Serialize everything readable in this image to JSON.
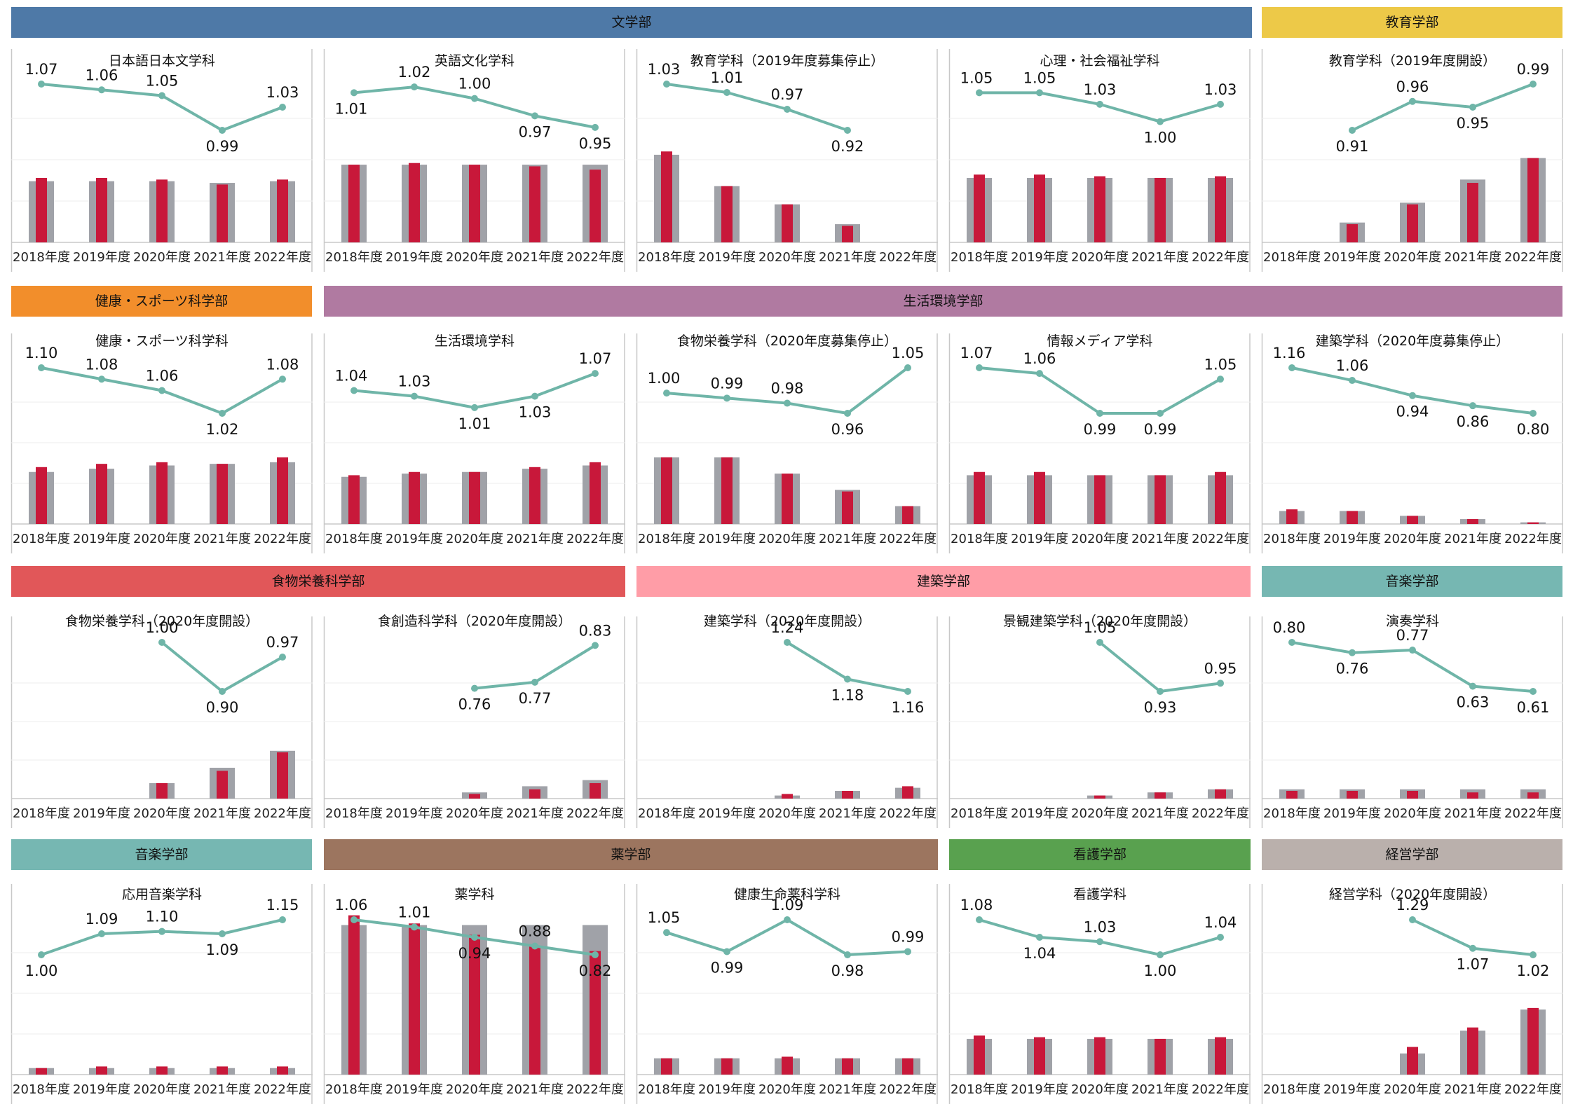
{
  "colors": {
    "gray_bar": "#a0a2a8",
    "red_bar": "#c8183a",
    "line": "#6fb5a8",
    "axis": "#c8c8c8",
    "grid": "#eeeeee"
  },
  "years": [
    "2018年度",
    "2019年度",
    "2020年度",
    "2021年度",
    "2022年度"
  ],
  "bands": [
    {
      "label": "文学部",
      "color": "#4e79a7"
    },
    {
      "label": "教育学部",
      "color": "#edc948"
    },
    {
      "label": "健康・スポーツ科学部",
      "color": "#f28e2b"
    },
    {
      "label": "生活環境学部",
      "color": "#b07aa1"
    },
    {
      "label": "食物栄養科学部",
      "color": "#e15759"
    },
    {
      "label": "建築学部",
      "color": "#ff9da7"
    },
    {
      "label": "音楽学部",
      "color": "#76b7b2"
    },
    {
      "label": "音楽学部",
      "color": "#76b7b2"
    },
    {
      "label": "薬学部",
      "color": "#9c755f"
    },
    {
      "label": "看護学部",
      "color": "#59a14f"
    },
    {
      "label": "経営学部",
      "color": "#bab0ac"
    }
  ],
  "chart_data": [
    {
      "type": "bar+line",
      "title": "日本語日本文学科",
      "categories": [
        "2018年度",
        "2019年度",
        "2020年度",
        "2021年度",
        "2022年度"
      ],
      "series": [
        {
          "type": "bar",
          "values": [
            0.37,
            0.37,
            0.37,
            0.36,
            0.37
          ]
        },
        {
          "type": "bar",
          "values": [
            0.39,
            0.39,
            0.38,
            0.35,
            0.38
          ]
        },
        {
          "type": "line",
          "values": [
            1.07,
            1.06,
            1.05,
            0.99,
            1.03
          ]
        }
      ]
    },
    {
      "type": "bar+line",
      "title": "英語文化学科",
      "categories": [
        "2018年度",
        "2019年度",
        "2020年度",
        "2021年度",
        "2022年度"
      ],
      "series": [
        {
          "type": "bar",
          "values": [
            0.47,
            0.47,
            0.47,
            0.47,
            0.47
          ]
        },
        {
          "type": "bar",
          "values": [
            0.47,
            0.48,
            0.47,
            0.46,
            0.44
          ]
        },
        {
          "type": "line",
          "values": [
            1.01,
            1.02,
            1.0,
            0.97,
            0.95
          ]
        }
      ]
    },
    {
      "type": "bar+line",
      "title": "教育学科（2019年度募集停止）",
      "categories": [
        "2018年度",
        "2019年度",
        "2020年度",
        "2021年度",
        "2022年度"
      ],
      "series": [
        {
          "type": "bar",
          "values": [
            0.53,
            0.34,
            0.23,
            0.11,
            null
          ]
        },
        {
          "type": "bar",
          "values": [
            0.55,
            0.34,
            0.23,
            0.1,
            null
          ]
        },
        {
          "type": "line",
          "values": [
            1.03,
            1.01,
            0.97,
            0.92,
            null
          ]
        }
      ]
    },
    {
      "type": "bar+line",
      "title": "心理・社会福祉学科",
      "categories": [
        "2018年度",
        "2019年度",
        "2020年度",
        "2021年度",
        "2022年度"
      ],
      "series": [
        {
          "type": "bar",
          "values": [
            0.39,
            0.39,
            0.39,
            0.39,
            0.39
          ]
        },
        {
          "type": "bar",
          "values": [
            0.41,
            0.41,
            0.4,
            0.39,
            0.4
          ]
        },
        {
          "type": "line",
          "values": [
            1.05,
            1.05,
            1.03,
            1.0,
            1.03
          ]
        }
      ]
    },
    {
      "type": "bar+line",
      "title": "教育学科（2019年度開設）",
      "categories": [
        "2018年度",
        "2019年度",
        "2020年度",
        "2021年度",
        "2022年度"
      ],
      "series": [
        {
          "type": "bar",
          "values": [
            null,
            0.12,
            0.24,
            0.38,
            0.51
          ]
        },
        {
          "type": "bar",
          "values": [
            null,
            0.11,
            0.23,
            0.36,
            0.51
          ]
        },
        {
          "type": "line",
          "values": [
            null,
            0.91,
            0.96,
            0.95,
            0.99
          ]
        }
      ]
    },
    {
      "type": "bar+line",
      "title": "健康・スポーツ科学科",
      "categories": [
        "2018年度",
        "2019年度",
        "2020年度",
        "2021年度",
        "2022年度"
      ],
      "series": [
        {
          "type": "bar",
          "values": [
            0.32,
            0.34,
            0.36,
            0.37,
            0.38
          ]
        },
        {
          "type": "bar",
          "values": [
            0.35,
            0.37,
            0.38,
            0.37,
            0.41
          ]
        },
        {
          "type": "line",
          "values": [
            1.1,
            1.08,
            1.06,
            1.02,
            1.08
          ]
        }
      ]
    },
    {
      "type": "bar+line",
      "title": "生活環境学科",
      "categories": [
        "2018年度",
        "2019年度",
        "2020年度",
        "2021年度",
        "2022年度"
      ],
      "series": [
        {
          "type": "bar",
          "values": [
            0.29,
            0.31,
            0.32,
            0.34,
            0.36
          ]
        },
        {
          "type": "bar",
          "values": [
            0.3,
            0.32,
            0.32,
            0.35,
            0.38
          ]
        },
        {
          "type": "line",
          "values": [
            1.04,
            1.03,
            1.01,
            1.03,
            1.07
          ]
        }
      ]
    },
    {
      "type": "bar+line",
      "title": "食物栄養学科（2020年度募集停止）",
      "categories": [
        "2018年度",
        "2019年度",
        "2020年度",
        "2021年度",
        "2022年度"
      ],
      "series": [
        {
          "type": "bar",
          "values": [
            0.41,
            0.41,
            0.31,
            0.21,
            0.11
          ]
        },
        {
          "type": "bar",
          "values": [
            0.41,
            0.41,
            0.31,
            0.2,
            0.11
          ]
        },
        {
          "type": "line",
          "values": [
            1.0,
            0.99,
            0.98,
            0.96,
            1.05
          ]
        }
      ]
    },
    {
      "type": "bar+line",
      "title": "情報メディア学科",
      "categories": [
        "2018年度",
        "2019年度",
        "2020年度",
        "2021年度",
        "2022年度"
      ],
      "series": [
        {
          "type": "bar",
          "values": [
            0.3,
            0.3,
            0.3,
            0.3,
            0.3
          ]
        },
        {
          "type": "bar",
          "values": [
            0.32,
            0.32,
            0.3,
            0.3,
            0.32
          ]
        },
        {
          "type": "line",
          "values": [
            1.07,
            1.06,
            0.99,
            0.99,
            1.05
          ]
        }
      ]
    },
    {
      "type": "bar+line",
      "title": "建築学科（2020年度募集停止）",
      "categories": [
        "2018年度",
        "2019年度",
        "2020年度",
        "2021年度",
        "2022年度"
      ],
      "series": [
        {
          "type": "bar",
          "values": [
            0.08,
            0.08,
            0.05,
            0.03,
            0.01
          ]
        },
        {
          "type": "bar",
          "values": [
            0.09,
            0.08,
            0.05,
            0.03,
            0.01
          ]
        },
        {
          "type": "line",
          "values": [
            1.16,
            1.06,
            0.94,
            0.86,
            0.8
          ]
        }
      ]
    },
    {
      "type": "bar+line",
      "title": "食物栄養学科（2020年度開設）",
      "categories": [
        "2018年度",
        "2019年度",
        "2020年度",
        "2021年度",
        "2022年度"
      ],
      "series": [
        {
          "type": "bar",
          "values": [
            null,
            null,
            0.1,
            0.2,
            0.31
          ]
        },
        {
          "type": "bar",
          "values": [
            null,
            null,
            0.1,
            0.18,
            0.3
          ]
        },
        {
          "type": "line",
          "values": [
            null,
            null,
            1.0,
            0.9,
            0.97
          ]
        }
      ]
    },
    {
      "type": "bar+line",
      "title": "食創造科学科（2020年度開設）",
      "categories": [
        "2018年度",
        "2019年度",
        "2020年度",
        "2021年度",
        "2022年度"
      ],
      "series": [
        {
          "type": "bar",
          "values": [
            null,
            null,
            0.04,
            0.08,
            0.12
          ]
        },
        {
          "type": "bar",
          "values": [
            null,
            null,
            0.03,
            0.06,
            0.1
          ]
        },
        {
          "type": "line",
          "values": [
            null,
            null,
            0.76,
            0.77,
            0.83
          ]
        }
      ]
    },
    {
      "type": "bar+line",
      "title": "建築学科（2020年度開設）",
      "categories": [
        "2018年度",
        "2019年度",
        "2020年度",
        "2021年度",
        "2022年度"
      ],
      "series": [
        {
          "type": "bar",
          "values": [
            null,
            null,
            0.02,
            0.05,
            0.07
          ]
        },
        {
          "type": "bar",
          "values": [
            null,
            null,
            0.03,
            0.05,
            0.08
          ]
        },
        {
          "type": "line",
          "values": [
            null,
            null,
            1.24,
            1.18,
            1.16
          ]
        }
      ]
    },
    {
      "type": "bar+line",
      "title": "景観建築学科（2020年度開設）",
      "categories": [
        "2018年度",
        "2019年度",
        "2020年度",
        "2021年度",
        "2022年度"
      ],
      "series": [
        {
          "type": "bar",
          "values": [
            null,
            null,
            0.02,
            0.04,
            0.06
          ]
        },
        {
          "type": "bar",
          "values": [
            null,
            null,
            0.02,
            0.04,
            0.06
          ]
        },
        {
          "type": "line",
          "values": [
            null,
            null,
            1.05,
            0.93,
            0.95
          ]
        }
      ]
    },
    {
      "type": "bar+line",
      "title": "演奏学科",
      "categories": [
        "2018年度",
        "2019年度",
        "2020年度",
        "2021年度",
        "2022年度"
      ],
      "series": [
        {
          "type": "bar",
          "values": [
            0.06,
            0.06,
            0.06,
            0.06,
            0.06
          ]
        },
        {
          "type": "bar",
          "values": [
            0.05,
            0.05,
            0.05,
            0.04,
            0.04
          ]
        },
        {
          "type": "line",
          "values": [
            0.8,
            0.76,
            0.77,
            0.63,
            0.61
          ]
        }
      ]
    },
    {
      "type": "bar+line",
      "title": "応用音楽学科",
      "categories": [
        "2018年度",
        "2019年度",
        "2020年度",
        "2021年度",
        "2022年度"
      ],
      "series": [
        {
          "type": "bar",
          "values": [
            0.04,
            0.04,
            0.04,
            0.04,
            0.04
          ]
        },
        {
          "type": "bar",
          "values": [
            0.04,
            0.05,
            0.05,
            0.05,
            0.05
          ]
        },
        {
          "type": "line",
          "values": [
            1.0,
            1.09,
            1.1,
            1.09,
            1.15
          ]
        }
      ]
    },
    {
      "type": "bar+line",
      "title": "薬学科",
      "categories": [
        "2018年度",
        "2019年度",
        "2020年度",
        "2021年度",
        "2022年度"
      ],
      "series": [
        {
          "type": "bar",
          "values": [
            0.92,
            0.92,
            0.92,
            0.92,
            0.92
          ]
        },
        {
          "type": "bar",
          "values": [
            0.98,
            0.93,
            0.86,
            0.79,
            0.76
          ]
        },
        {
          "type": "line",
          "values": [
            1.06,
            1.01,
            0.94,
            0.88,
            0.82
          ]
        }
      ]
    },
    {
      "type": "bar+line",
      "title": "健康生命薬科学科",
      "categories": [
        "2018年度",
        "2019年度",
        "2020年度",
        "2021年度",
        "2022年度"
      ],
      "series": [
        {
          "type": "bar",
          "values": [
            0.1,
            0.1,
            0.1,
            0.1,
            0.1
          ]
        },
        {
          "type": "bar",
          "values": [
            0.1,
            0.1,
            0.11,
            0.1,
            0.1
          ]
        },
        {
          "type": "line",
          "values": [
            1.05,
            0.99,
            1.09,
            0.98,
            0.99
          ]
        }
      ]
    },
    {
      "type": "bar+line",
      "title": "看護学科",
      "categories": [
        "2018年度",
        "2019年度",
        "2020年度",
        "2021年度",
        "2022年度"
      ],
      "series": [
        {
          "type": "bar",
          "values": [
            0.22,
            0.22,
            0.22,
            0.22,
            0.22
          ]
        },
        {
          "type": "bar",
          "values": [
            0.24,
            0.23,
            0.23,
            0.22,
            0.23
          ]
        },
        {
          "type": "line",
          "values": [
            1.08,
            1.04,
            1.03,
            1.0,
            1.04
          ]
        }
      ]
    },
    {
      "type": "bar+line",
      "title": "経営学科（2020年度開設）",
      "categories": [
        "2018年度",
        "2019年度",
        "2020年度",
        "2021年度",
        "2022年度"
      ],
      "series": [
        {
          "type": "bar",
          "values": [
            null,
            null,
            0.13,
            0.27,
            0.4
          ]
        },
        {
          "type": "bar",
          "values": [
            null,
            null,
            0.17,
            0.29,
            0.41
          ]
        },
        {
          "type": "line",
          "values": [
            null,
            null,
            1.29,
            1.07,
            1.02
          ]
        }
      ]
    }
  ]
}
